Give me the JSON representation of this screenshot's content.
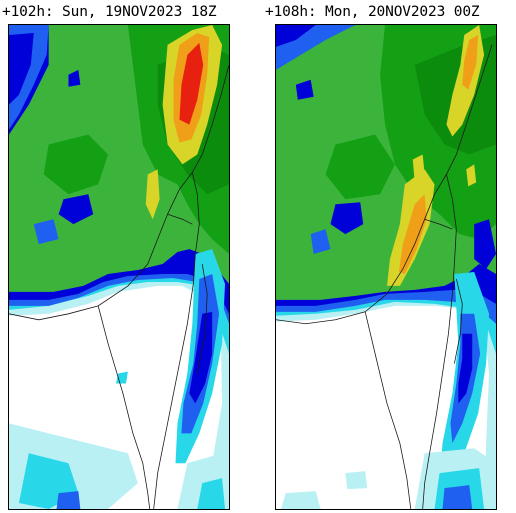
{
  "panels": [
    {
      "title": "+102h: Sun, 19NOV2023 18Z",
      "forecast_hour": "+102h",
      "valid_day": "Sun",
      "valid_time": "19NOV2023 18Z"
    },
    {
      "title": "+108h: Mon, 20NOV2023 00Z",
      "forecast_hour": "+108h",
      "valid_day": "Mon",
      "valid_time": "20NOV2023 00Z"
    }
  ],
  "colors": {
    "background": "#ffffff",
    "level_1": "#b8f0f4",
    "level_2": "#28d8e8",
    "level_3": "#2060f0",
    "level_4": "#0000d8",
    "level_5": "#3cb43c",
    "level_6": "#14a014",
    "level_7": "#0c8c0c",
    "level_8": "#d8d428",
    "level_9": "#f0a018",
    "level_10": "#e82010",
    "coastline": "#1a1a1a"
  }
}
